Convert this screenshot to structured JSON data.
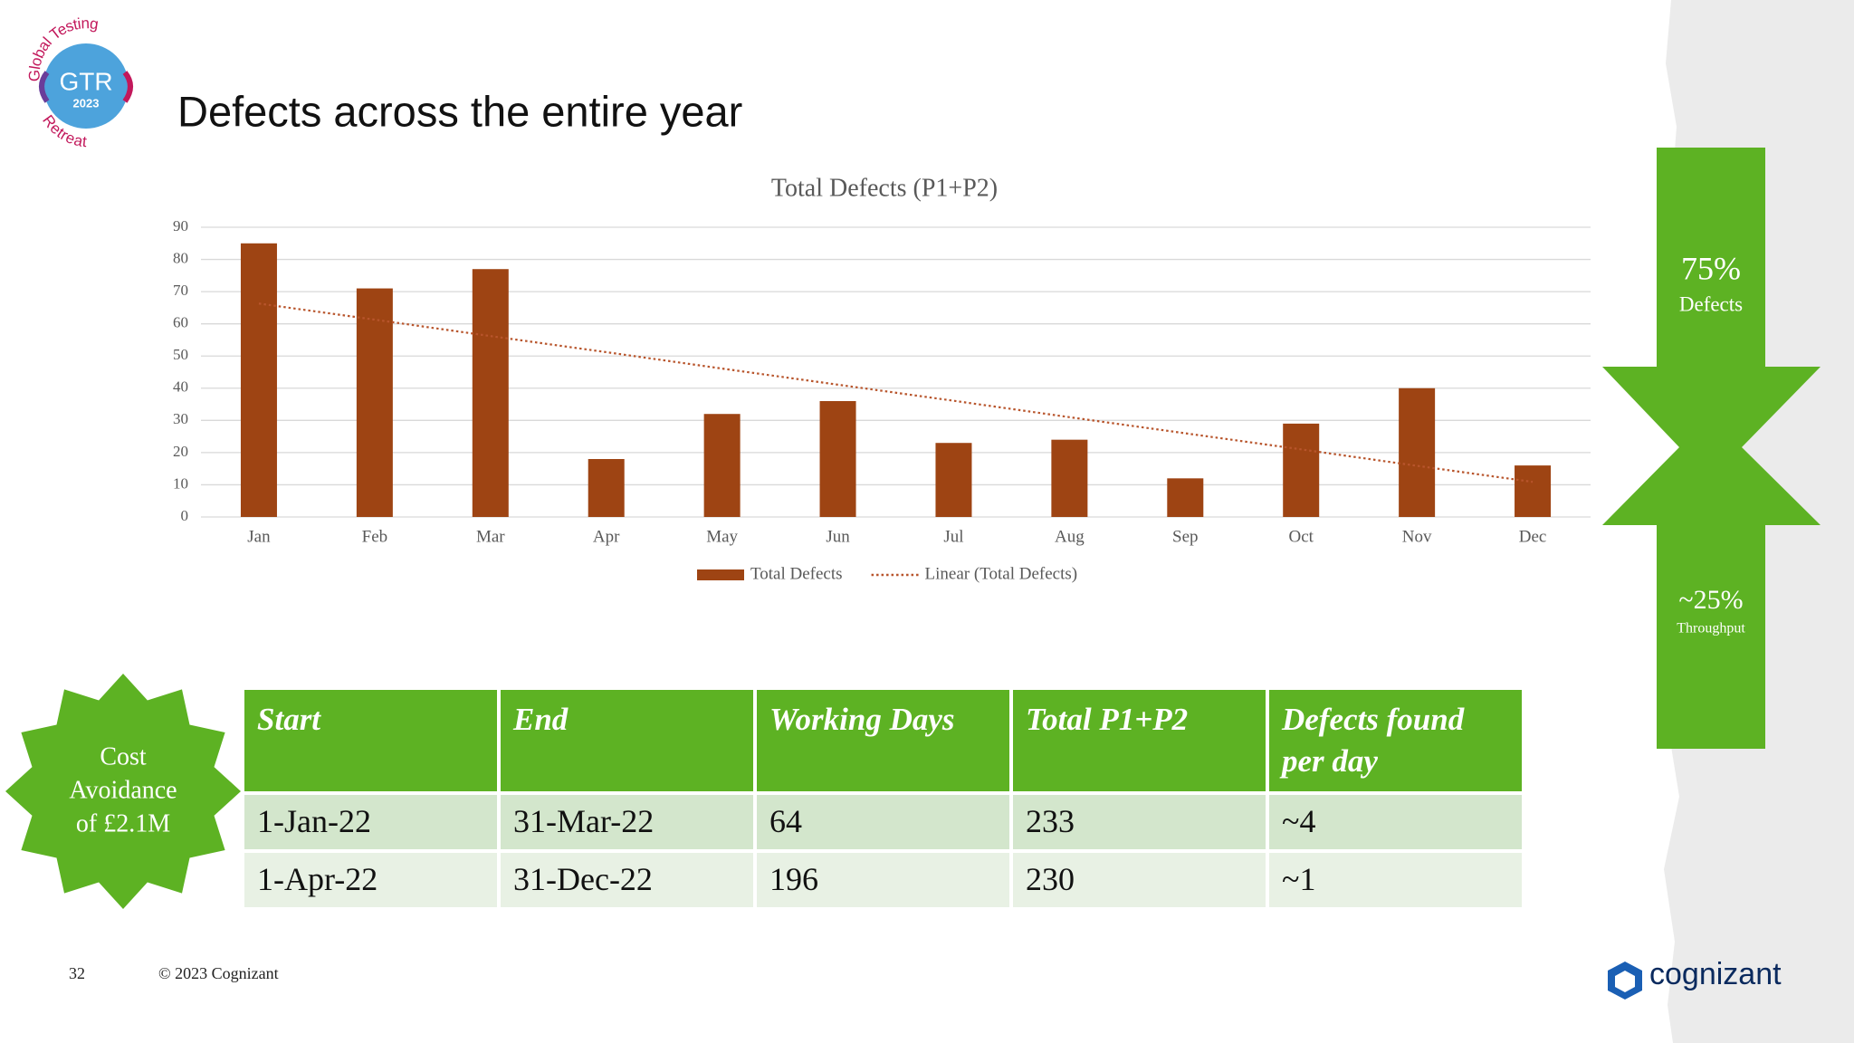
{
  "header": {
    "title": "Defects across the entire year"
  },
  "logo": {
    "top": "Global Testing",
    "main": "GTR",
    "year": "2023",
    "bottom": "Retreat"
  },
  "chart_data": {
    "type": "bar",
    "title": "Total Defects (P1+P2)",
    "categories": [
      "Jan",
      "Feb",
      "Mar",
      "Apr",
      "May",
      "Jun",
      "Jul",
      "Aug",
      "Sep",
      "Oct",
      "Nov",
      "Dec"
    ],
    "series": [
      {
        "name": "Total Defects",
        "type": "bar",
        "color": "#9e4413",
        "values": [
          85,
          71,
          77,
          18,
          32,
          36,
          23,
          24,
          12,
          29,
          40,
          16
        ]
      },
      {
        "name": "Linear (Total Defects)",
        "type": "line",
        "color": "#b8552c",
        "values": [
          66.3,
          61.3,
          56.2,
          51.2,
          46.1,
          41.1,
          36.1,
          31.0,
          26.0,
          21.0,
          15.9,
          10.9
        ]
      }
    ],
    "ylim": [
      0,
      90
    ],
    "yticks": [
      0,
      10,
      20,
      30,
      40,
      50,
      60,
      70,
      80,
      90
    ],
    "grid": true,
    "legend": "bottom"
  },
  "callout": {
    "top": "75%",
    "top_label": "Defects",
    "bottom": "~25%",
    "bottom_label": "Throughput"
  },
  "badge": {
    "lines": [
      "Cost",
      "Avoidance",
      "of £2.1M"
    ]
  },
  "table": {
    "columns": [
      "Start",
      "End",
      "Working Days",
      "Total P1+P2",
      "Defects found per day"
    ],
    "rows": [
      [
        "1-Jan-22",
        "31-Mar-22",
        64,
        233,
        "~4"
      ],
      [
        "1-Apr-22",
        "31-Dec-22",
        196,
        230,
        "~1"
      ]
    ]
  },
  "footer": {
    "page": 32,
    "copyright": "© 2023 Cognizant",
    "brand": "cognizant"
  }
}
